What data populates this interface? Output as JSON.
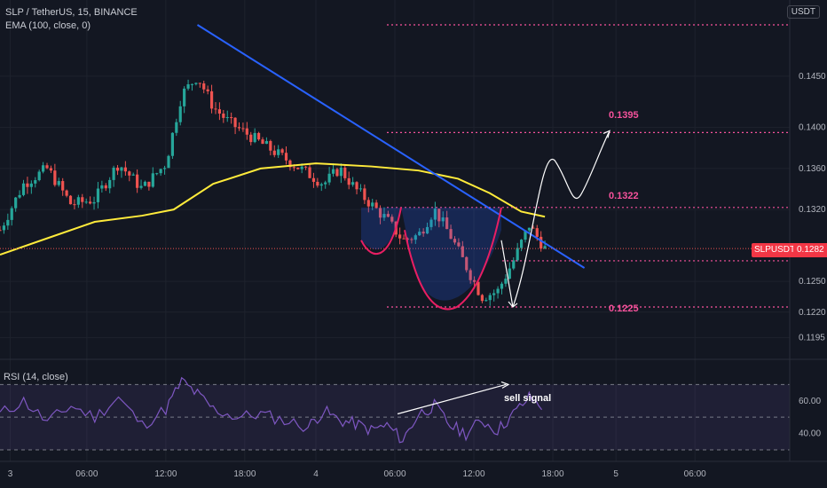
{
  "header": {
    "symbol_line": "SLP / TetherUS, 15, BINANCE",
    "indicator_line": "EMA (100, close, 0)",
    "currency_button": "USDT"
  },
  "rsi_header": "RSI (14, close)",
  "current_price": {
    "symbol": "SLPUSDT",
    "value": "0.1282"
  },
  "levels": [
    {
      "label": "0.1395",
      "value": 0.1395
    },
    {
      "label": "0.1322",
      "value": 0.1322
    },
    {
      "label": "0.1225",
      "value": 0.1225
    }
  ],
  "annotation": "sell signal",
  "colors": {
    "background": "#131722",
    "up": "#26a69a",
    "down": "#ef5350",
    "ema": "#ffeb3b",
    "trendline": "#2962ff",
    "level": "#f7529c",
    "rsi": "#7e57c2"
  },
  "chart_data": [
    {
      "type": "candlestick",
      "title": "SLP / TetherUS, 15, BINANCE",
      "x_ticks": [
        "3",
        "06:00",
        "12:00",
        "18:00",
        "4",
        "06:00",
        "12:00",
        "18:00",
        "5",
        "06:00"
      ],
      "y_ticks": [
        "0.1450",
        "0.1400",
        "0.1360",
        "0.1320",
        "0.1250",
        "0.1220",
        "0.1195"
      ],
      "series": [
        {
          "name": "EMA (100, close, 0)",
          "type": "line",
          "points": [
            [
              0,
              0.1276
            ],
            [
              0.06,
              0.1292
            ],
            [
              0.12,
              0.1308
            ],
            [
              0.18,
              0.1314
            ],
            [
              0.22,
              0.132
            ],
            [
              0.27,
              0.1345
            ],
            [
              0.33,
              0.136
            ],
            [
              0.4,
              0.1365
            ],
            [
              0.47,
              0.1362
            ],
            [
              0.53,
              0.1358
            ],
            [
              0.58,
              0.135
            ],
            [
              0.62,
              0.1336
            ],
            [
              0.66,
              0.1318
            ],
            [
              0.69,
              0.1313
            ]
          ]
        },
        {
          "name": "close",
          "type": "line",
          "points": [
            [
              0,
              0.13
            ],
            [
              0.03,
              0.1345
            ],
            [
              0.06,
              0.136
            ],
            [
              0.09,
              0.1325
            ],
            [
              0.12,
              0.133
            ],
            [
              0.15,
              0.1365
            ],
            [
              0.18,
              0.134
            ],
            [
              0.21,
              0.1365
            ],
            [
              0.23,
              0.1432
            ],
            [
              0.25,
              0.145
            ],
            [
              0.27,
              0.142
            ],
            [
              0.29,
              0.1405
            ],
            [
              0.32,
              0.139
            ],
            [
              0.35,
              0.1375
            ],
            [
              0.38,
              0.136
            ],
            [
              0.41,
              0.1345
            ],
            [
              0.43,
              0.136
            ],
            [
              0.45,
              0.134
            ],
            [
              0.47,
              0.1325
            ],
            [
              0.49,
              0.131
            ],
            [
              0.51,
              0.129
            ],
            [
              0.53,
              0.1295
            ],
            [
              0.55,
              0.132
            ],
            [
              0.57,
              0.1295
            ],
            [
              0.59,
              0.1265
            ],
            [
              0.61,
              0.1235
            ],
            [
              0.63,
              0.124
            ],
            [
              0.65,
              0.127
            ],
            [
              0.67,
              0.1305
            ],
            [
              0.69,
              0.1282
            ]
          ]
        }
      ],
      "annotations": {
        "trendline_from": [
          0.25,
          0.15
        ],
        "trendline_to": [
          0.74,
          0.1263
        ]
      }
    },
    {
      "type": "line",
      "title": "RSI (14, close)",
      "y_ticks": [
        "60.00",
        "40.00"
      ],
      "series": [
        {
          "name": "RSI",
          "points": [
            [
              0,
              52
            ],
            [
              0.03,
              60
            ],
            [
              0.06,
              47
            ],
            [
              0.09,
              57
            ],
            [
              0.12,
              50
            ],
            [
              0.15,
              62
            ],
            [
              0.18,
              45
            ],
            [
              0.21,
              55
            ],
            [
              0.23,
              72
            ],
            [
              0.25,
              64
            ],
            [
              0.27,
              55
            ],
            [
              0.3,
              50
            ],
            [
              0.33,
              52
            ],
            [
              0.36,
              48
            ],
            [
              0.39,
              44
            ],
            [
              0.41,
              54
            ],
            [
              0.43,
              48
            ],
            [
              0.45,
              46
            ],
            [
              0.47,
              42
            ],
            [
              0.49,
              45
            ],
            [
              0.51,
              36
            ],
            [
              0.53,
              52
            ],
            [
              0.55,
              57
            ],
            [
              0.57,
              45
            ],
            [
              0.59,
              40
            ],
            [
              0.61,
              48
            ],
            [
              0.63,
              42
            ],
            [
              0.65,
              52
            ],
            [
              0.67,
              62
            ],
            [
              0.69,
              56
            ]
          ]
        }
      ]
    }
  ]
}
